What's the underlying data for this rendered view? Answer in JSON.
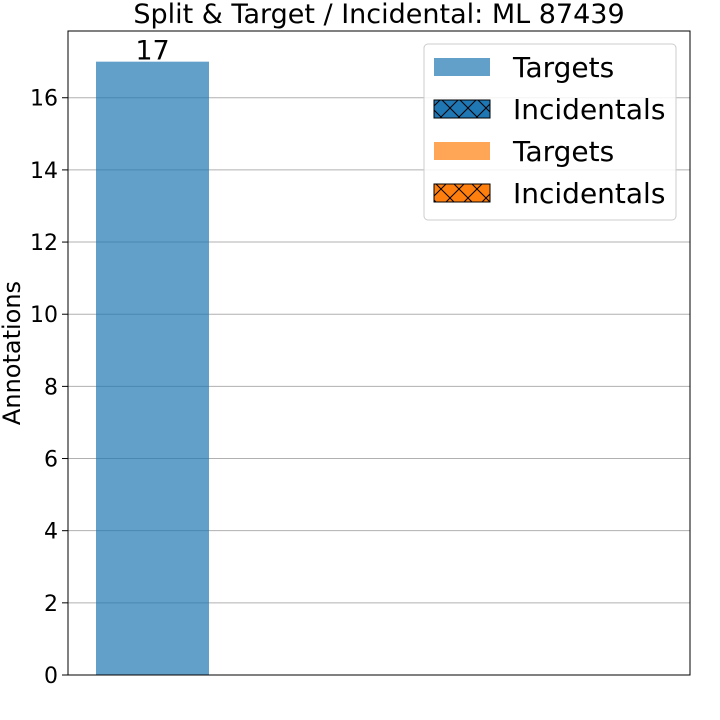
{
  "chart_data": {
    "type": "bar",
    "title": "Split & Target / Incidental: ML 87439",
    "xlabel": "",
    "ylabel": "Annotations",
    "ylim": [
      0,
      17.85
    ],
    "yticks": [
      0,
      2,
      4,
      6,
      8,
      10,
      12,
      14,
      16
    ],
    "grid": "horizontal",
    "categories": [
      ""
    ],
    "series": [
      {
        "name": "Targets",
        "group": "blue",
        "color": "#1f77b4",
        "alpha": 0.7,
        "hatch": false,
        "values": [
          17
        ]
      },
      {
        "name": "Incidentals",
        "group": "blue",
        "color": "#1f77b4",
        "alpha": 1.0,
        "hatch": true,
        "values": [
          0
        ]
      },
      {
        "name": "Targets",
        "group": "orange",
        "color": "#ff7f0e",
        "alpha": 0.7,
        "hatch": false,
        "values": [
          0
        ]
      },
      {
        "name": "Incidentals",
        "group": "orange",
        "color": "#ff7f0e",
        "alpha": 1.0,
        "hatch": true,
        "values": [
          0
        ]
      }
    ],
    "data_labels": [
      "17"
    ],
    "legend": {
      "position": "top-right",
      "entries": [
        "Targets",
        "Incidentals",
        "Targets",
        "Incidentals"
      ]
    }
  }
}
